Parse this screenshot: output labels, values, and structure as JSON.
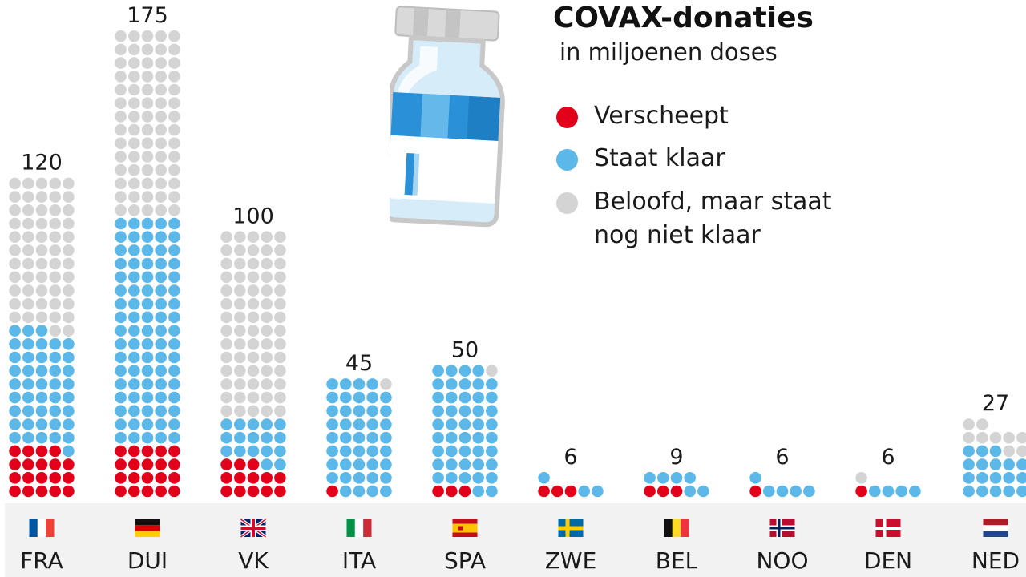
{
  "title": "COVAX-donaties",
  "subtitle": "in miljoenen doses",
  "colors": {
    "shipped": "#e2001a",
    "ready": "#5bb8e8",
    "pledged": "#d4d4d4",
    "footer": "#f2f2f2"
  },
  "legend": [
    {
      "key": "shipped",
      "label": "Verscheept"
    },
    {
      "key": "ready",
      "label": "Staat klaar"
    },
    {
      "key": "pledged",
      "label": "Beloofd, maar staat\nnog niet klaar"
    }
  ],
  "decoration": "vaccine-vial-icon",
  "chart_data": {
    "type": "bar",
    "unit": "miljoen doses",
    "stacking": "stacked",
    "categories": [
      "FRA",
      "DUI",
      "VK",
      "ITA",
      "SPA",
      "ZWE",
      "BEL",
      "NOO",
      "DEN",
      "NED"
    ],
    "flags": [
      "france-flag-icon",
      "germany-flag-icon",
      "uk-flag-icon",
      "italy-flag-icon",
      "spain-flag-icon",
      "sweden-flag-icon",
      "belgium-flag-icon",
      "norway-flag-icon",
      "denmark-flag-icon",
      "netherlands-flag-icon"
    ],
    "totals": [
      120,
      175,
      100,
      45,
      50,
      6,
      9,
      6,
      6,
      27
    ],
    "series": [
      {
        "name": "Verscheept",
        "values": [
          19,
          20,
          13,
          1,
          3,
          3,
          3,
          1,
          1,
          0
        ]
      },
      {
        "name": "Staat klaar",
        "values": [
          44,
          85,
          17,
          43,
          46,
          3,
          6,
          5,
          4,
          18
        ]
      },
      {
        "name": "Beloofd, maar staat nog niet klaar",
        "values": [
          57,
          70,
          70,
          1,
          1,
          0,
          0,
          0,
          1,
          9
        ]
      }
    ]
  }
}
